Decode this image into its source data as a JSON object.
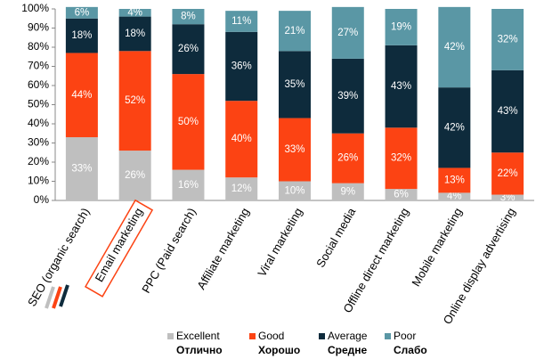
{
  "chart_data": {
    "type": "stacked_bar",
    "categories": [
      "SEO (organic search)",
      "Email marketing",
      "PPC (Paid search)",
      "Affiliate marketing",
      "Viral marketing",
      "Social media",
      "Offline direct marketing",
      "Mobile marketing",
      "Online display advertising"
    ],
    "series": [
      {
        "name": "Excellent",
        "label_ru": "Отлично",
        "color": "#bfbfbf",
        "values": [
          33,
          26,
          16,
          12,
          10,
          9,
          6,
          4,
          3
        ],
        "value_labels": [
          "33%",
          "26%",
          "16%",
          "12%",
          "10%",
          "9%",
          "6%",
          "4%",
          "3%"
        ]
      },
      {
        "name": "Good",
        "label_ru": "Хорошо",
        "color": "#fc4313",
        "values": [
          44,
          52,
          50,
          40,
          33,
          26,
          32,
          13,
          22
        ],
        "value_labels": [
          "44%",
          "52%",
          "50%",
          "40%",
          "33%",
          "26%",
          "32%",
          "13%",
          "22%"
        ]
      },
      {
        "name": "Average",
        "label_ru": "Средне",
        "color": "#0e2b3c",
        "values": [
          18,
          18,
          26,
          36,
          35,
          39,
          43,
          42,
          43
        ],
        "value_labels": [
          "18%",
          "18%",
          "26%",
          "36%",
          "35%",
          "39%",
          "43%",
          "42%",
          "43%"
        ]
      },
      {
        "name": "Poor",
        "label_ru": "Слабо",
        "color": "#5a97a5",
        "values": [
          6,
          4,
          8,
          11,
          21,
          27,
          19,
          42,
          32
        ],
        "value_labels": [
          "6%",
          "4%",
          "8%",
          "11%",
          "21%",
          "27%",
          "19%",
          "42%",
          "32%"
        ]
      }
    ],
    "ylim": [
      0,
      100
    ],
    "yticks": [
      {
        "value": 0,
        "label": "0%"
      },
      {
        "value": 10,
        "label": "10%"
      },
      {
        "value": 20,
        "label": "20%"
      },
      {
        "value": 30,
        "label": "30%"
      },
      {
        "value": 40,
        "label": "40%"
      },
      {
        "value": 50,
        "label": "50%"
      },
      {
        "value": 60,
        "label": "60%"
      },
      {
        "value": 70,
        "label": "70%"
      },
      {
        "value": 80,
        "label": "80%"
      },
      {
        "value": 90,
        "label": "90%"
      },
      {
        "value": 100,
        "label": "100%"
      }
    ],
    "grid": false
  }
}
